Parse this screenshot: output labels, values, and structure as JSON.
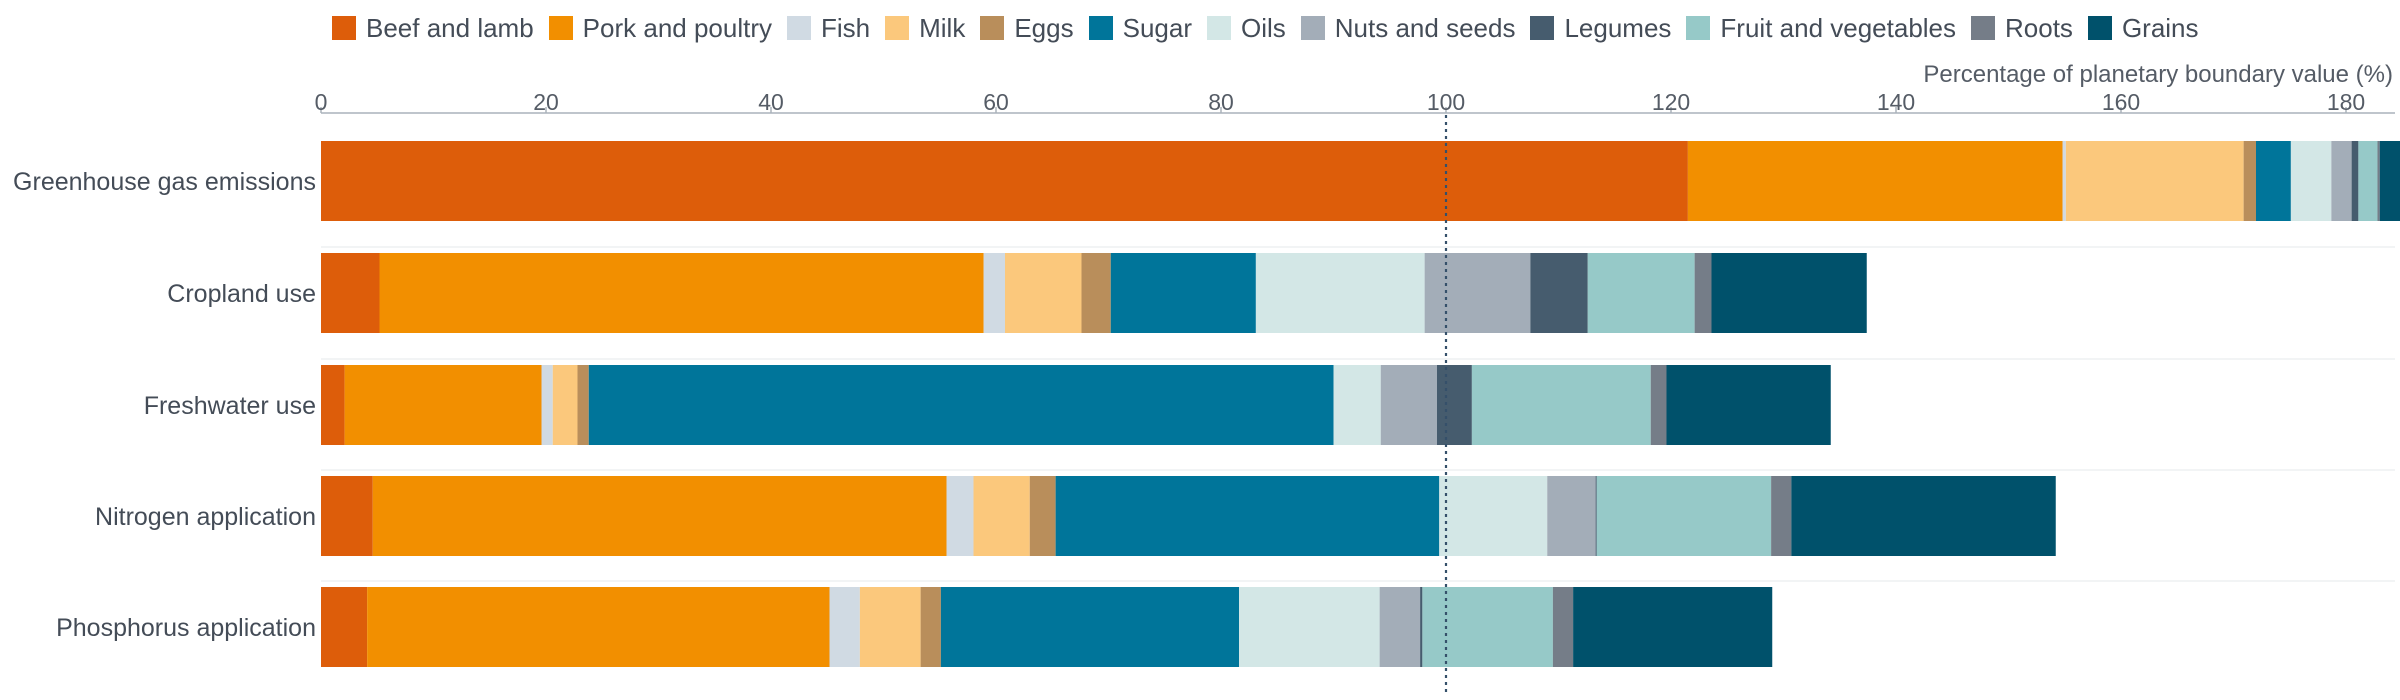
{
  "chart_data": {
    "type": "bar",
    "orientation": "horizontal",
    "stacked": true,
    "xlabel": "Percentage of planetary boundary value (%)",
    "xlim": [
      0,
      185
    ],
    "xticks": [
      0,
      20,
      40,
      60,
      80,
      100,
      120,
      140,
      160,
      180
    ],
    "reference_line": 100,
    "legend_position": "top",
    "categories": [
      "Greenhouse gas emissions",
      "Cropland use",
      "Freshwater use",
      "Nitrogen application",
      "Phosphorus application"
    ],
    "series": [
      {
        "name": "Beef and lamb",
        "color": "#dd5d0a",
        "values": [
          121.5,
          5.2,
          2.1,
          4.6,
          4.1
        ]
      },
      {
        "name": "Pork and poultry",
        "color": "#f28f00",
        "values": [
          33.3,
          53.7,
          17.5,
          51.0,
          41.1
        ]
      },
      {
        "name": "Fish",
        "color": "#d0dae3",
        "values": [
          0.3,
          1.9,
          1.0,
          2.4,
          2.7
        ]
      },
      {
        "name": "Milk",
        "color": "#fbc87c",
        "values": [
          15.8,
          6.8,
          2.2,
          5.0,
          5.4
        ]
      },
      {
        "name": "Eggs",
        "color": "#b98e5b",
        "values": [
          1.1,
          2.6,
          1.0,
          2.3,
          1.8
        ]
      },
      {
        "name": "Sugar",
        "color": "#00759a",
        "values": [
          3.1,
          12.9,
          66.2,
          34.1,
          26.5
        ]
      },
      {
        "name": "Oils",
        "color": "#d3e7e6",
        "values": [
          3.6,
          15.0,
          4.2,
          9.6,
          12.5
        ]
      },
      {
        "name": "Nuts and seeds",
        "color": "#a3adb8",
        "values": [
          1.8,
          9.4,
          5.0,
          4.3,
          3.6
        ]
      },
      {
        "name": "Legumes",
        "color": "#465c6e",
        "values": [
          0.6,
          5.1,
          3.1,
          0.1,
          0.2
        ]
      },
      {
        "name": "Fruit and vegetables",
        "color": "#96c9c8",
        "values": [
          1.7,
          9.5,
          15.9,
          15.5,
          11.6
        ]
      },
      {
        "name": "Roots",
        "color": "#757d88",
        "values": [
          0.2,
          1.5,
          1.4,
          1.8,
          1.8
        ]
      },
      {
        "name": "Grains",
        "color": "#00516b",
        "values": [
          2.2,
          13.8,
          14.6,
          23.5,
          17.7
        ]
      }
    ]
  }
}
